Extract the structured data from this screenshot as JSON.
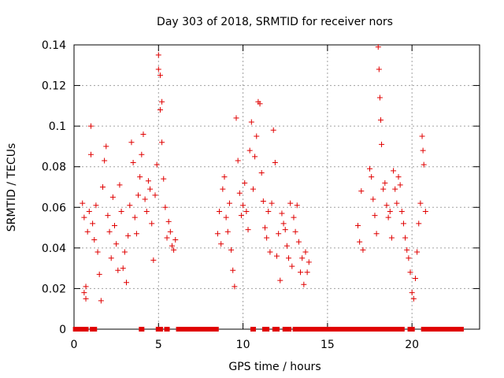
{
  "chart_data": {
    "type": "scatter",
    "title": "Day 303 of 2018, SRMTID for receiver nors",
    "xlabel": "GPS time / hours",
    "ylabel": "SRMTID / TECUs",
    "xlim": [
      0,
      24
    ],
    "ylim": [
      0,
      0.14
    ],
    "x_ticks": [
      0,
      5,
      10,
      15,
      20
    ],
    "y_ticks": [
      0,
      0.02,
      0.04,
      0.06,
      0.08,
      0.1,
      0.12,
      0.14
    ],
    "x_tick_labels": [
      "0",
      "5",
      "10",
      "15",
      "20"
    ],
    "y_tick_labels": [
      "0",
      "0.02",
      "0.04",
      "0.06",
      "0.08",
      "0.1",
      "0.12",
      "0.14"
    ],
    "grid": true,
    "marker": "plus",
    "color": "#e00000",
    "series": [
      {
        "name": "SRMTID",
        "points": [
          [
            0.5,
            0.062
          ],
          [
            0.6,
            0.055
          ],
          [
            0.6,
            0.018
          ],
          [
            0.7,
            0.015
          ],
          [
            0.7,
            0.021
          ],
          [
            0.8,
            0.048
          ],
          [
            0.9,
            0.058
          ],
          [
            1.0,
            0.1
          ],
          [
            1.0,
            0.086
          ],
          [
            1.1,
            0.052
          ],
          [
            1.2,
            0.044
          ],
          [
            1.3,
            0.061
          ],
          [
            1.4,
            0.038
          ],
          [
            1.5,
            0.027
          ],
          [
            1.6,
            0.014
          ],
          [
            1.7,
            0.07
          ],
          [
            1.8,
            0.083
          ],
          [
            1.9,
            0.09
          ],
          [
            2.0,
            0.056
          ],
          [
            2.1,
            0.048
          ],
          [
            2.2,
            0.035
          ],
          [
            2.3,
            0.065
          ],
          [
            2.4,
            0.051
          ],
          [
            2.5,
            0.042
          ],
          [
            2.6,
            0.029
          ],
          [
            2.7,
            0.071
          ],
          [
            2.8,
            0.058
          ],
          [
            2.9,
            0.03
          ],
          [
            3.0,
            0.038
          ],
          [
            3.1,
            0.023
          ],
          [
            3.2,
            0.046
          ],
          [
            3.3,
            0.061
          ],
          [
            3.4,
            0.092
          ],
          [
            3.5,
            0.082
          ],
          [
            3.6,
            0.055
          ],
          [
            3.7,
            0.047
          ],
          [
            3.8,
            0.066
          ],
          [
            3.9,
            0.075
          ],
          [
            4.0,
            0.086
          ],
          [
            4.1,
            0.096
          ],
          [
            4.2,
            0.064
          ],
          [
            4.3,
            0.058
          ],
          [
            4.4,
            0.073
          ],
          [
            4.5,
            0.069
          ],
          [
            4.6,
            0.052
          ],
          [
            4.7,
            0.034
          ],
          [
            4.8,
            0.066
          ],
          [
            4.9,
            0.081
          ],
          [
            5.0,
            0.135
          ],
          [
            5.0,
            0.128
          ],
          [
            5.1,
            0.125
          ],
          [
            5.1,
            0.108
          ],
          [
            5.2,
            0.112
          ],
          [
            5.2,
            0.092
          ],
          [
            5.3,
            0.074
          ],
          [
            5.4,
            0.06
          ],
          [
            5.5,
            0.045
          ],
          [
            5.6,
            0.053
          ],
          [
            5.7,
            0.048
          ],
          [
            5.8,
            0.041
          ],
          [
            5.9,
            0.039
          ],
          [
            6.0,
            0.044
          ],
          [
            8.5,
            0.047
          ],
          [
            8.6,
            0.058
          ],
          [
            8.7,
            0.042
          ],
          [
            8.8,
            0.069
          ],
          [
            8.9,
            0.075
          ],
          [
            9.0,
            0.055
          ],
          [
            9.1,
            0.048
          ],
          [
            9.2,
            0.062
          ],
          [
            9.3,
            0.039
          ],
          [
            9.4,
            0.029
          ],
          [
            9.5,
            0.021
          ],
          [
            9.6,
            0.104
          ],
          [
            9.7,
            0.083
          ],
          [
            9.8,
            0.067
          ],
          [
            9.9,
            0.056
          ],
          [
            10.0,
            0.061
          ],
          [
            10.1,
            0.072
          ],
          [
            10.2,
            0.058
          ],
          [
            10.3,
            0.049
          ],
          [
            10.4,
            0.088
          ],
          [
            10.5,
            0.102
          ],
          [
            10.6,
            0.069
          ],
          [
            10.7,
            0.085
          ],
          [
            10.8,
            0.095
          ],
          [
            10.9,
            0.112
          ],
          [
            11.0,
            0.111
          ],
          [
            11.1,
            0.077
          ],
          [
            11.2,
            0.063
          ],
          [
            11.3,
            0.05
          ],
          [
            11.4,
            0.045
          ],
          [
            11.5,
            0.058
          ],
          [
            11.6,
            0.038
          ],
          [
            11.7,
            0.062
          ],
          [
            11.8,
            0.098
          ],
          [
            11.9,
            0.082
          ],
          [
            12.0,
            0.036
          ],
          [
            12.1,
            0.047
          ],
          [
            12.2,
            0.024
          ],
          [
            12.3,
            0.057
          ],
          [
            12.4,
            0.052
          ],
          [
            12.5,
            0.049
          ],
          [
            12.6,
            0.041
          ],
          [
            12.7,
            0.035
          ],
          [
            12.8,
            0.062
          ],
          [
            12.9,
            0.031
          ],
          [
            13.0,
            0.055
          ],
          [
            13.1,
            0.048
          ],
          [
            13.2,
            0.061
          ],
          [
            13.3,
            0.043
          ],
          [
            13.4,
            0.028
          ],
          [
            13.5,
            0.035
          ],
          [
            13.6,
            0.022
          ],
          [
            13.7,
            0.038
          ],
          [
            13.8,
            0.028
          ],
          [
            13.9,
            0.033
          ],
          [
            16.8,
            0.051
          ],
          [
            16.9,
            0.043
          ],
          [
            17.0,
            0.068
          ],
          [
            17.1,
            0.039
          ],
          [
            17.5,
            0.079
          ],
          [
            17.6,
            0.075
          ],
          [
            17.7,
            0.064
          ],
          [
            17.8,
            0.056
          ],
          [
            17.9,
            0.047
          ],
          [
            18.0,
            0.139
          ],
          [
            18.05,
            0.128
          ],
          [
            18.1,
            0.114
          ],
          [
            18.15,
            0.103
          ],
          [
            18.2,
            0.091
          ],
          [
            18.3,
            0.069
          ],
          [
            18.4,
            0.072
          ],
          [
            18.5,
            0.061
          ],
          [
            18.6,
            0.055
          ],
          [
            18.7,
            0.058
          ],
          [
            18.8,
            0.045
          ],
          [
            18.9,
            0.078
          ],
          [
            19.0,
            0.069
          ],
          [
            19.1,
            0.062
          ],
          [
            19.2,
            0.075
          ],
          [
            19.3,
            0.071
          ],
          [
            19.4,
            0.058
          ],
          [
            19.5,
            0.052
          ],
          [
            19.6,
            0.045
          ],
          [
            19.7,
            0.039
          ],
          [
            19.8,
            0.035
          ],
          [
            19.9,
            0.028
          ],
          [
            20.0,
            0.018
          ],
          [
            20.1,
            0.015
          ],
          [
            20.2,
            0.025
          ],
          [
            20.3,
            0.038
          ],
          [
            20.4,
            0.052
          ],
          [
            20.5,
            0.062
          ],
          [
            20.6,
            0.095
          ],
          [
            20.65,
            0.088
          ],
          [
            20.7,
            0.081
          ],
          [
            20.8,
            0.058
          ]
        ]
      },
      {
        "name": "zero",
        "x": [
          0.1,
          0.2,
          0.3,
          0.4,
          0.5,
          0.6,
          0.7,
          1.1,
          1.2,
          4.0,
          5.0,
          5.1,
          5.5,
          6.2,
          6.3,
          6.4,
          6.5,
          6.6,
          6.7,
          6.8,
          6.9,
          7.0,
          7.1,
          7.2,
          7.3,
          7.4,
          7.5,
          7.6,
          7.7,
          7.8,
          7.9,
          8.0,
          8.1,
          8.2,
          8.3,
          8.4,
          10.6,
          11.3,
          11.4,
          11.9,
          12.0,
          12.5,
          12.6,
          12.7,
          13.1,
          13.2,
          13.3,
          13.4,
          13.5,
          13.6,
          13.7,
          13.8,
          13.9,
          14.0,
          14.1,
          14.2,
          14.3,
          14.4,
          14.5,
          14.6,
          14.7,
          14.8,
          14.9,
          15.0,
          15.1,
          15.2,
          15.3,
          15.4,
          15.5,
          15.6,
          15.7,
          15.8,
          15.9,
          16.0,
          16.1,
          16.2,
          16.3,
          16.5,
          16.6,
          16.7,
          16.9,
          17.0,
          17.1,
          17.4,
          17.5,
          17.6,
          17.8,
          17.9,
          18.0,
          18.2,
          18.4,
          18.5,
          18.7,
          18.8,
          18.9,
          19.2,
          19.4,
          19.9,
          20.0,
          20.7,
          20.8,
          20.9,
          21.0,
          21.1,
          21.2,
          21.3,
          21.4,
          21.5,
          21.6,
          21.7,
          21.8,
          21.9,
          22.0,
          22.1,
          22.2,
          22.3,
          22.4,
          22.5,
          22.6,
          22.7,
          22.8,
          22.9
        ]
      }
    ]
  }
}
